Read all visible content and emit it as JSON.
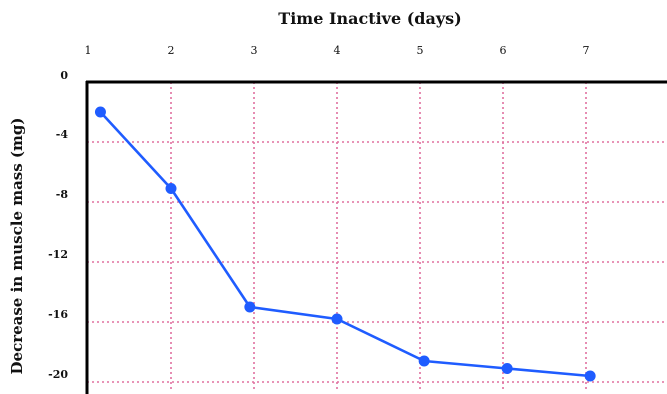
{
  "chart_data": {
    "type": "line",
    "title": "Time Inactive (days)",
    "xlabel": "Time Inactive (days)",
    "ylabel": "Decrease in muscle mass (mg)",
    "x_axis_position": "top",
    "x_ticks": [
      1,
      2,
      3,
      4,
      5,
      6,
      7
    ],
    "y_ticks": [
      0,
      -4,
      -8,
      -12,
      -16,
      -20
    ],
    "xlim": [
      1,
      7
    ],
    "ylim": [
      -20,
      0
    ],
    "grid": true,
    "colors": {
      "line": "#1f5cff",
      "grid": "#e0709f",
      "axis": "#000000"
    },
    "series": [
      {
        "x": [
          1.15,
          2.0,
          2.95,
          4.0,
          5.05,
          6.05,
          7.05
        ],
        "values": [
          -2.0,
          -7.1,
          -15.0,
          -15.8,
          -18.6,
          -19.1,
          -19.6
        ]
      }
    ]
  }
}
